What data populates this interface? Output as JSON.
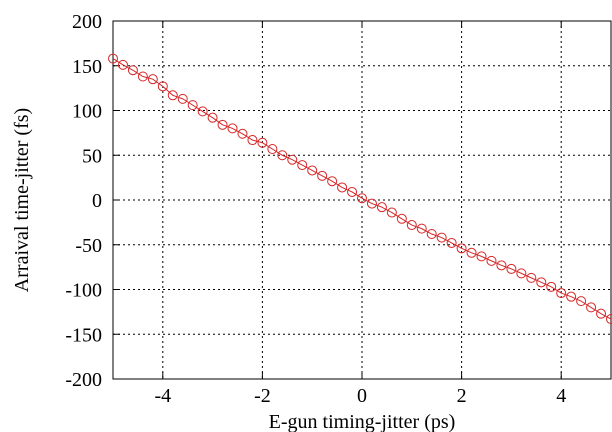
{
  "chart_data": {
    "type": "line",
    "title": "",
    "xlabel": "E-gun timing-jitter (ps)",
    "ylabel": "Arraival time-jitter (fs)",
    "xlim": [
      -5,
      5
    ],
    "ylim": [
      -200,
      200
    ],
    "xticks": [
      -4,
      -2,
      0,
      2,
      4
    ],
    "yticks": [
      -200,
      -150,
      -100,
      -50,
      0,
      50,
      100,
      150,
      200
    ],
    "grid": true,
    "grid_style": "dotted",
    "legend": "none",
    "series": [
      {
        "color": "#d62728",
        "marker": "open-circle",
        "x": [
          -5.0,
          -4.8,
          -4.6,
          -4.4,
          -4.2,
          -4.0,
          -3.8,
          -3.6,
          -3.4,
          -3.2,
          -3.0,
          -2.8,
          -2.6,
          -2.4,
          -2.2,
          -2.0,
          -1.8,
          -1.6,
          -1.4,
          -1.2,
          -1.0,
          -0.8,
          -0.6,
          -0.4,
          -0.2,
          0.0,
          0.2,
          0.4,
          0.6,
          0.8,
          1.0,
          1.2,
          1.4,
          1.6,
          1.8,
          2.0,
          2.2,
          2.4,
          2.6,
          2.8,
          3.0,
          3.2,
          3.4,
          3.6,
          3.8,
          4.0,
          4.2,
          4.4,
          4.6,
          4.8,
          5.0
        ],
        "y": [
          158,
          151,
          145,
          138,
          135,
          127,
          117,
          113,
          106,
          99,
          92,
          84,
          80,
          74,
          67,
          64,
          57,
          50,
          45,
          39,
          33,
          27,
          21,
          14,
          9,
          2,
          -4,
          -8,
          -14,
          -21,
          -28,
          -32,
          -38,
          -42,
          -48,
          -54,
          -59,
          -63,
          -68,
          -73,
          -77,
          -82,
          -87,
          -92,
          -97,
          -104,
          -108,
          -113,
          -120,
          -127,
          -133
        ]
      }
    ]
  }
}
